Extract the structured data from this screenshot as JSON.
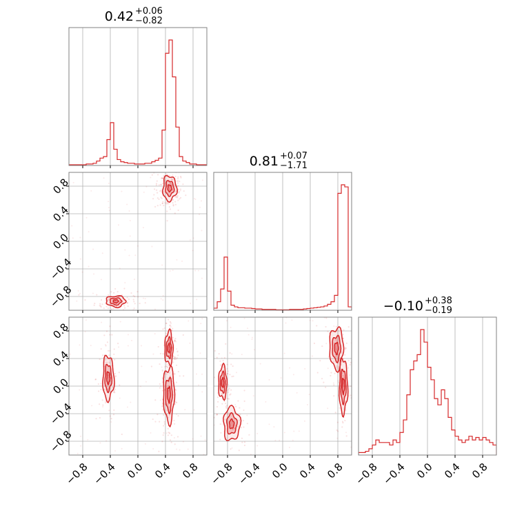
{
  "chart_data": {
    "type": "corner",
    "color": "#d62728",
    "tick_labels": [
      "−0.8",
      "−0.4",
      "0.0",
      "0.4",
      "0.8"
    ],
    "tick_values": [
      -0.8,
      -0.4,
      0.0,
      0.4,
      0.8
    ],
    "range": [
      -1.0,
      1.0
    ],
    "grid": true,
    "parameters": [
      {
        "title": {
          "median": "0.42",
          "plus": "+0.06",
          "minus": "−0.82"
        },
        "histogram": {
          "bins": [
            -1.0,
            -0.95,
            -0.9,
            -0.85,
            -0.8,
            -0.75,
            -0.7,
            -0.65,
            -0.6,
            -0.55,
            -0.5,
            -0.45,
            -0.4,
            -0.35,
            -0.3,
            -0.25,
            -0.2,
            -0.15,
            -0.1,
            -0.05,
            0.0,
            0.05,
            0.1,
            0.15,
            0.2,
            0.25,
            0.3,
            0.35,
            0.4,
            0.45,
            0.5,
            0.55,
            0.6,
            0.65,
            0.7,
            0.75,
            0.8,
            0.85,
            0.9,
            0.95,
            1.0
          ],
          "counts": [
            1,
            1,
            1,
            1,
            1,
            2,
            2,
            3,
            6,
            10,
            12,
            35,
            58,
            22,
            8,
            5,
            4,
            3,
            3,
            2,
            2,
            2,
            3,
            3,
            5,
            7,
            10,
            48,
            152,
            170,
            120,
            52,
            12,
            6,
            4,
            2,
            2,
            1,
            1,
            1
          ]
        }
      },
      {
        "title": {
          "median": "0.81",
          "plus": "+0.07",
          "minus": "−1.71"
        },
        "histogram": {
          "bins": [
            -1.0,
            -0.95,
            -0.9,
            -0.85,
            -0.8,
            -0.75,
            -0.7,
            -0.65,
            -0.6,
            -0.55,
            -0.5,
            -0.45,
            -0.4,
            -0.35,
            -0.3,
            -0.25,
            -0.2,
            -0.15,
            -0.1,
            -0.05,
            0.0,
            0.05,
            0.1,
            0.15,
            0.2,
            0.25,
            0.3,
            0.35,
            0.4,
            0.45,
            0.5,
            0.55,
            0.6,
            0.65,
            0.7,
            0.75,
            0.8,
            0.85,
            0.9,
            0.95,
            1.0
          ],
          "counts": [
            5,
            20,
            50,
            125,
            45,
            12,
            8,
            6,
            6,
            5,
            5,
            4,
            3,
            3,
            2,
            2,
            2,
            2,
            1,
            1,
            1,
            1,
            2,
            2,
            2,
            2,
            3,
            4,
            5,
            6,
            7,
            8,
            10,
            14,
            20,
            35,
            275,
            295,
            290,
            8
          ]
        }
      },
      {
        "title": {
          "median": "−0.10",
          "plus": "+0.38",
          "minus": "−0.19"
        },
        "histogram": {
          "bins": [
            -1.0,
            -0.95,
            -0.9,
            -0.85,
            -0.8,
            -0.75,
            -0.7,
            -0.65,
            -0.6,
            -0.55,
            -0.5,
            -0.45,
            -0.4,
            -0.35,
            -0.3,
            -0.25,
            -0.2,
            -0.15,
            -0.1,
            -0.05,
            0.0,
            0.05,
            0.1,
            0.15,
            0.2,
            0.25,
            0.3,
            0.35,
            0.4,
            0.45,
            0.5,
            0.55,
            0.6,
            0.65,
            0.7,
            0.75,
            0.8,
            0.85,
            0.9,
            0.95,
            1.0
          ],
          "counts": [
            2,
            2,
            3,
            5,
            8,
            12,
            10,
            10,
            10,
            8,
            12,
            10,
            18,
            28,
            48,
            68,
            75,
            80,
            100,
            90,
            70,
            60,
            45,
            40,
            52,
            45,
            30,
            20,
            15,
            12,
            10,
            12,
            15,
            12,
            14,
            12,
            14,
            12,
            10,
            8
          ]
        }
      }
    ],
    "pairs": [
      {
        "row": 1,
        "col": 0,
        "modes": [
          {
            "cx": 0.46,
            "cy": 0.77,
            "sx": 0.05,
            "sy": 0.09,
            "w": 1.0
          },
          {
            "cx": -0.32,
            "cy": -0.87,
            "sx": 0.07,
            "sy": 0.04,
            "w": 0.6
          }
        ]
      },
      {
        "row": 2,
        "col": 0,
        "modes": [
          {
            "cx": -0.43,
            "cy": 0.12,
            "sx": 0.04,
            "sy": 0.16,
            "w": 0.8
          },
          {
            "cx": 0.45,
            "cy": -0.12,
            "sx": 0.04,
            "sy": 0.2,
            "w": 1.0
          },
          {
            "cx": 0.45,
            "cy": 0.55,
            "sx": 0.03,
            "sy": 0.12,
            "w": 0.5
          }
        ]
      },
      {
        "row": 2,
        "col": 1,
        "modes": [
          {
            "cx": 0.88,
            "cy": 0.0,
            "sx": 0.03,
            "sy": 0.2,
            "w": 1.0
          },
          {
            "cx": 0.78,
            "cy": 0.55,
            "sx": 0.05,
            "sy": 0.15,
            "w": 0.6
          },
          {
            "cx": -0.87,
            "cy": 0.05,
            "sx": 0.03,
            "sy": 0.12,
            "w": 0.9
          },
          {
            "cx": -0.74,
            "cy": -0.55,
            "sx": 0.06,
            "sy": 0.12,
            "w": 0.6
          }
        ]
      }
    ]
  }
}
